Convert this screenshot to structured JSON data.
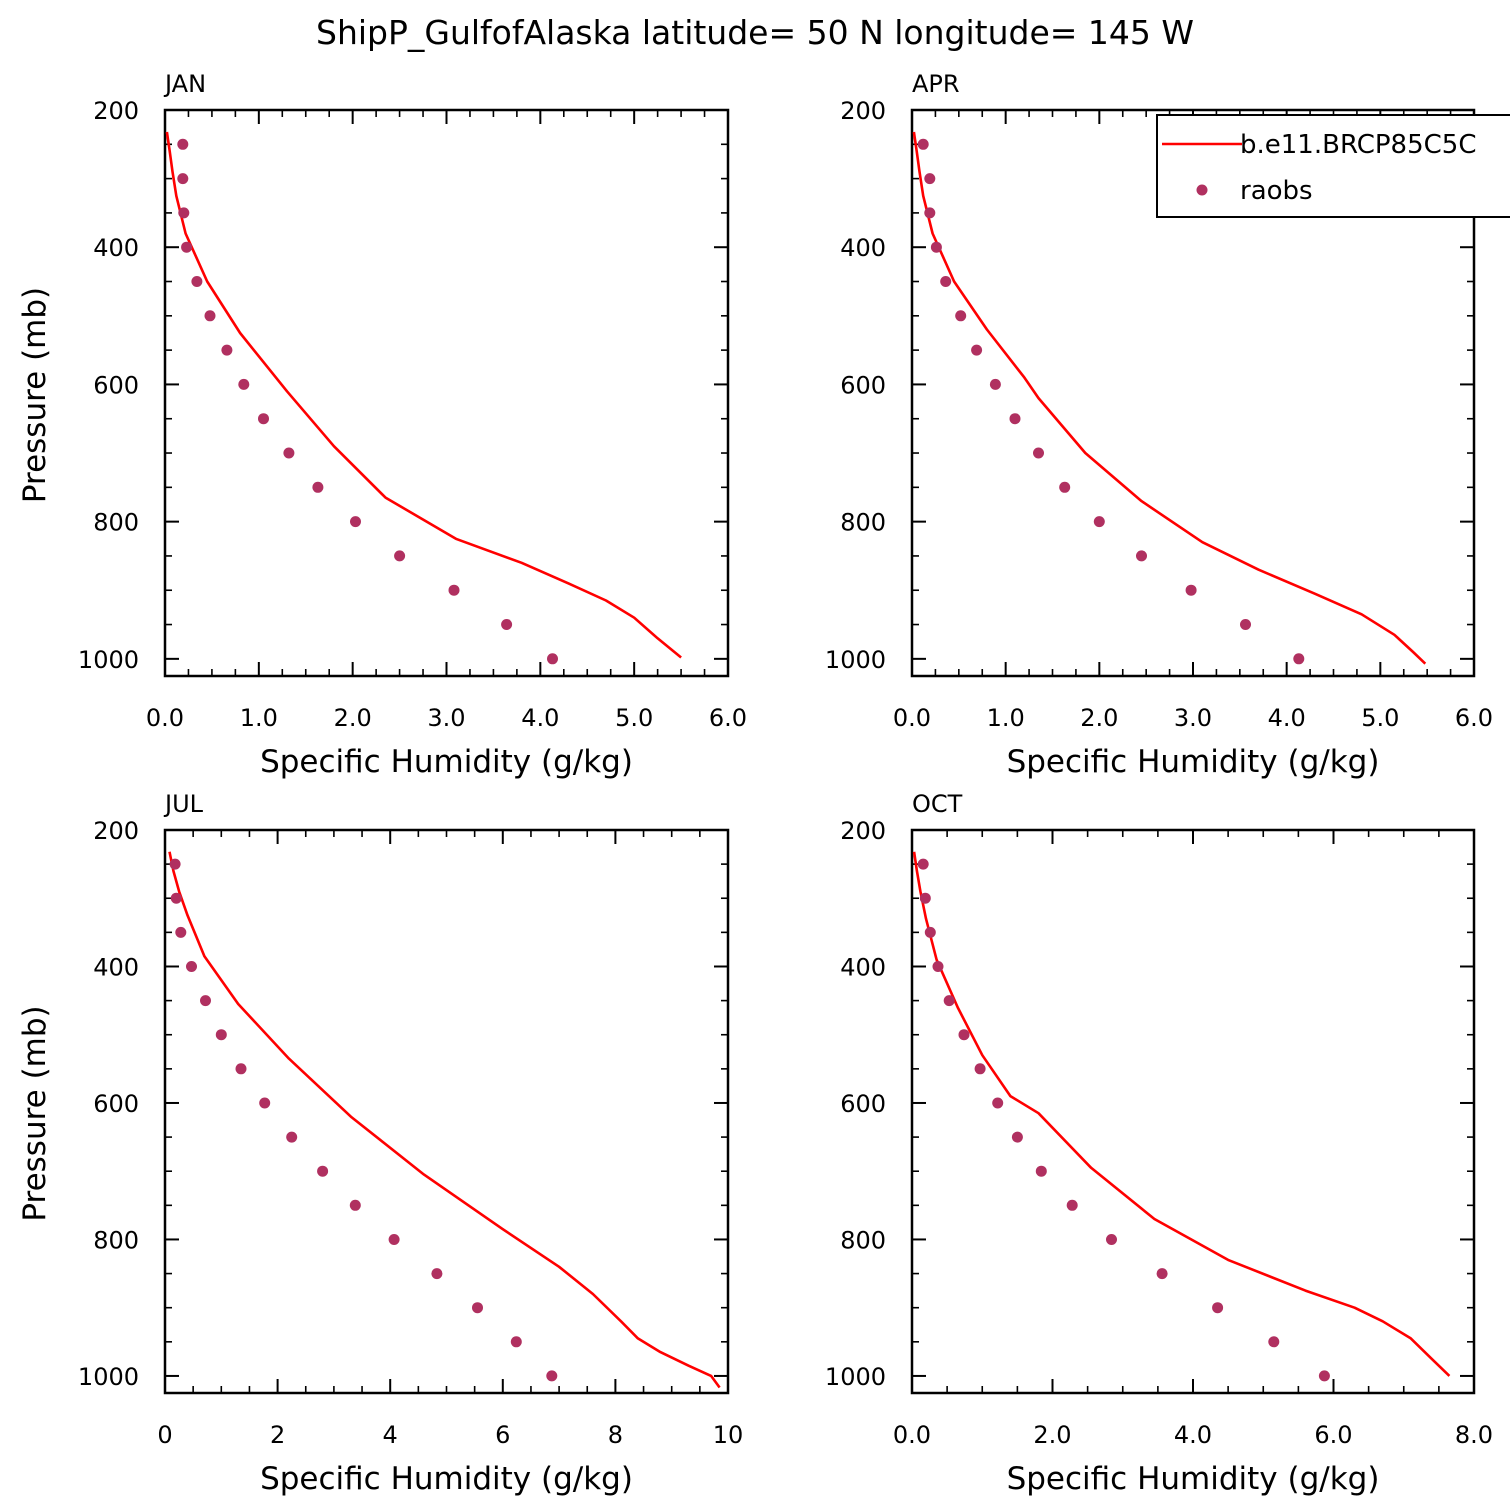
{
  "figure": {
    "title": "ShipP_GulfofAlaska  latitude= 50 N longitude= 145 W",
    "legend": {
      "placement": "top-right",
      "model_label": "b.e11.BRCP85C5C",
      "obs_label": "raobs"
    },
    "model_color": "#ff0000",
    "obs_color": "#b03060"
  },
  "chart_data": [
    {
      "type": "line",
      "panel": "JAN",
      "title": "JAN",
      "xlabel": "Specific Humidity (g/kg)",
      "ylabel": "Pressure (mb)",
      "xlim": [
        0,
        6
      ],
      "ylim": [
        1025,
        200
      ],
      "y_reversed": true,
      "x_ticks": [
        0,
        1,
        2,
        3,
        4,
        5,
        6
      ],
      "x_tick_labels": [
        "0.0",
        "1.0",
        "2.0",
        "3.0",
        "4.0",
        "5.0",
        "6.0"
      ],
      "y_ticks": [
        200,
        400,
        600,
        800,
        1000
      ],
      "y_tick_labels": [
        "200",
        "400",
        "600",
        "800",
        "1000"
      ],
      "series": [
        {
          "name": "b.e11.BRCP85C5C",
          "kind": "line",
          "x": [
            0.02,
            0.05,
            0.08,
            0.12,
            0.22,
            0.45,
            0.8,
            1.3,
            1.8,
            2.35,
            3.1,
            3.8,
            4.3,
            4.7,
            5.0,
            5.25,
            5.5
          ],
          "y": [
            232,
            260,
            290,
            325,
            380,
            450,
            525,
            610,
            690,
            765,
            825,
            860,
            890,
            915,
            940,
            970,
            998
          ]
        },
        {
          "name": "raobs",
          "kind": "points",
          "x": [
            0.19,
            0.19,
            0.2,
            0.23,
            0.34,
            0.48,
            0.66,
            0.84,
            1.05,
            1.32,
            1.63,
            2.03,
            2.5,
            3.08,
            3.64,
            4.13
          ],
          "y": [
            250,
            300,
            350,
            400,
            450,
            500,
            550,
            600,
            650,
            700,
            750,
            800,
            850,
            900,
            950,
            1000
          ]
        }
      ]
    },
    {
      "type": "line",
      "panel": "APR",
      "title": "APR",
      "xlabel": "Specific Humidity (g/kg)",
      "ylabel": "",
      "xlim": [
        0,
        6
      ],
      "ylim": [
        1025,
        200
      ],
      "y_reversed": true,
      "x_ticks": [
        0,
        1,
        2,
        3,
        4,
        5,
        6
      ],
      "x_tick_labels": [
        "0.0",
        "1.0",
        "2.0",
        "3.0",
        "4.0",
        "5.0",
        "6.0"
      ],
      "y_ticks": [
        200,
        400,
        600,
        800,
        1000
      ],
      "y_tick_labels": [
        "200",
        "400",
        "600",
        "800",
        "1000"
      ],
      "series": [
        {
          "name": "b.e11.BRCP85C5C",
          "kind": "line",
          "x": [
            0.02,
            0.05,
            0.08,
            0.12,
            0.22,
            0.45,
            0.8,
            1.2,
            1.35,
            1.85,
            2.45,
            3.1,
            3.7,
            4.3,
            4.8,
            5.15,
            5.35,
            5.48
          ],
          "y": [
            232,
            260,
            290,
            325,
            380,
            450,
            520,
            590,
            620,
            700,
            770,
            830,
            870,
            905,
            935,
            965,
            990,
            1007
          ]
        },
        {
          "name": "raobs",
          "kind": "points",
          "x": [
            0.12,
            0.19,
            0.19,
            0.26,
            0.36,
            0.52,
            0.69,
            0.89,
            1.1,
            1.35,
            1.63,
            2.0,
            2.45,
            2.98,
            3.56,
            4.13
          ],
          "y": [
            250,
            300,
            350,
            400,
            450,
            500,
            550,
            600,
            650,
            700,
            750,
            800,
            850,
            900,
            950,
            1000
          ]
        }
      ]
    },
    {
      "type": "line",
      "panel": "JUL",
      "title": "JUL",
      "xlabel": "Specific Humidity (g/kg)",
      "ylabel": "Pressure (mb)",
      "xlim": [
        0,
        10
      ],
      "ylim": [
        1025,
        200
      ],
      "y_reversed": true,
      "x_ticks": [
        0,
        2,
        4,
        6,
        8,
        10
      ],
      "x_tick_labels": [
        "0",
        "2",
        "4",
        "6",
        "8",
        "10"
      ],
      "y_ticks": [
        200,
        400,
        600,
        800,
        1000
      ],
      "y_tick_labels": [
        "200",
        "400",
        "600",
        "800",
        "1000"
      ],
      "series": [
        {
          "name": "b.e11.BRCP85C5C",
          "kind": "line",
          "x": [
            0.08,
            0.15,
            0.25,
            0.4,
            0.7,
            1.3,
            2.2,
            3.3,
            4.6,
            6.0,
            7.0,
            7.6,
            8.1,
            8.4,
            8.8,
            9.3,
            9.7,
            9.85
          ],
          "y": [
            232,
            260,
            290,
            325,
            385,
            455,
            535,
            620,
            705,
            785,
            840,
            880,
            920,
            945,
            965,
            985,
            1000,
            1017
          ]
        },
        {
          "name": "raobs",
          "kind": "points",
          "x": [
            0.18,
            0.2,
            0.28,
            0.47,
            0.72,
            1.0,
            1.35,
            1.77,
            2.25,
            2.8,
            3.38,
            4.07,
            4.83,
            5.55,
            6.24,
            6.87
          ],
          "y": [
            250,
            300,
            350,
            400,
            450,
            500,
            550,
            600,
            650,
            700,
            750,
            800,
            850,
            900,
            950,
            1000
          ]
        }
      ]
    },
    {
      "type": "line",
      "panel": "OCT",
      "title": "OCT",
      "xlabel": "Specific Humidity (g/kg)",
      "ylabel": "",
      "xlim": [
        0,
        8
      ],
      "ylim": [
        1025,
        200
      ],
      "y_reversed": true,
      "x_ticks": [
        0,
        2,
        4,
        6,
        8
      ],
      "x_tick_labels": [
        "0.0",
        "2.0",
        "4.0",
        "6.0",
        "8.0"
      ],
      "y_ticks": [
        200,
        400,
        600,
        800,
        1000
      ],
      "y_tick_labels": [
        "200",
        "400",
        "600",
        "800",
        "1000"
      ],
      "series": [
        {
          "name": "b.e11.BRCP85C5C",
          "kind": "line",
          "x": [
            0.03,
            0.07,
            0.12,
            0.2,
            0.35,
            0.65,
            1.0,
            1.4,
            1.8,
            2.55,
            3.45,
            4.5,
            5.6,
            6.3,
            6.7,
            7.1,
            7.4,
            7.65
          ],
          "y": [
            232,
            260,
            290,
            330,
            390,
            460,
            530,
            590,
            615,
            695,
            770,
            830,
            875,
            900,
            920,
            945,
            975,
            1000
          ]
        },
        {
          "name": "raobs",
          "kind": "points",
          "x": [
            0.16,
            0.19,
            0.26,
            0.37,
            0.53,
            0.74,
            0.97,
            1.22,
            1.5,
            1.84,
            2.28,
            2.84,
            3.56,
            4.35,
            5.15,
            5.87
          ],
          "y": [
            250,
            300,
            350,
            400,
            450,
            500,
            550,
            600,
            650,
            700,
            750,
            800,
            850,
            900,
            950,
            1000
          ]
        }
      ]
    }
  ]
}
